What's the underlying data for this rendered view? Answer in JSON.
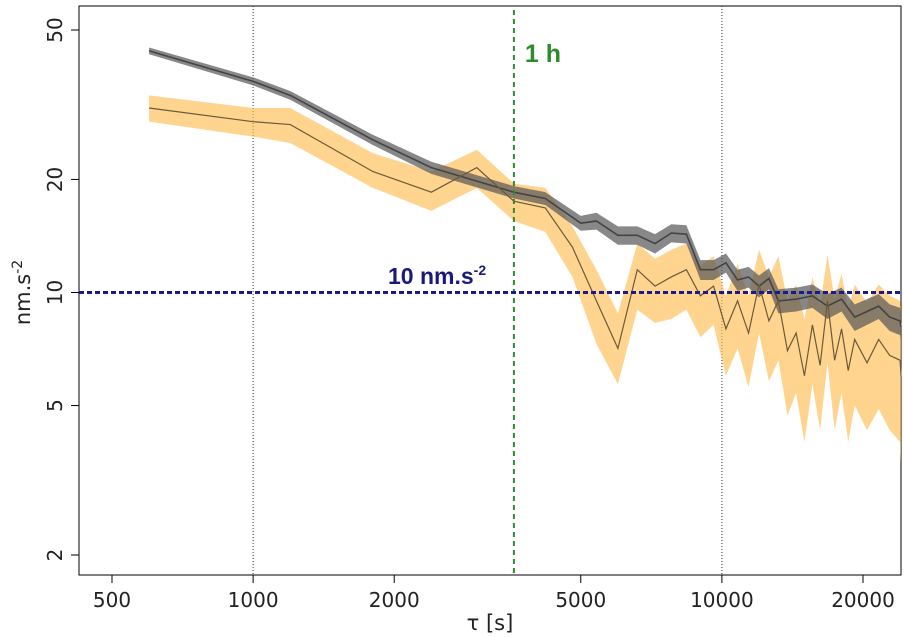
{
  "chart_data": {
    "type": "line",
    "title": "",
    "xlabel": "τ [s]",
    "ylabel_base": "nm.s",
    "ylabel_sup": "-2",
    "x_scale": "log",
    "y_scale": "log",
    "xlim": [
      390,
      25000
    ],
    "ylim": [
      1.8,
      60
    ],
    "x_ticks": [
      500,
      1000,
      2000,
      5000,
      10000,
      20000
    ],
    "x_tick_labels": [
      "500",
      "1000",
      "2000",
      "5000",
      "10000",
      "20000"
    ],
    "y_ticks": [
      2,
      5,
      10,
      20,
      50
    ],
    "y_tick_labels": [
      "2",
      "5",
      "10",
      "20",
      "50"
    ],
    "grid_vertical_dotted": [
      1000,
      10000
    ],
    "annotations": {
      "vline": {
        "x": 3600,
        "label": "1 h",
        "color": "#2e8b2e"
      },
      "hline": {
        "y": 10,
        "label_base": "10 nm.s",
        "label_sup": "-2",
        "color": "#1a1a8c"
      }
    },
    "colors": {
      "gray_band": "#555555",
      "gray_line": "#444444",
      "orange_band": "#fdb94a",
      "orange_line": "#6b5a3a"
    },
    "series": [
      {
        "color": "gray",
        "x": [
          600,
          1000,
          1200,
          1800,
          2400,
          3600,
          4200,
          5000,
          5400,
          6000,
          6600,
          7200,
          7800,
          8400,
          9000,
          9600,
          10200,
          10800,
          11400,
          12000,
          12600,
          13200,
          14400,
          15600,
          16800,
          18000,
          19200,
          20400,
          21600,
          22800,
          24000,
          25000
        ],
        "y": [
          44,
          36.5,
          33.5,
          25.5,
          21.5,
          18.5,
          17.8,
          15.3,
          15.5,
          14.2,
          14.2,
          13.5,
          14.4,
          14.3,
          11.5,
          11.5,
          12.0,
          10.8,
          11.0,
          10.4,
          10.9,
          9.5,
          9.6,
          9.8,
          9.2,
          9.6,
          8.6,
          8.9,
          9.2,
          8.6,
          8.4,
          8.1
        ],
        "band": [
          0.9,
          0.9,
          0.9,
          0.8,
          0.8,
          0.7,
          0.7,
          0.7,
          0.8,
          0.8,
          0.8,
          0.8,
          0.8,
          0.8,
          0.7,
          0.7,
          0.7,
          0.7,
          0.7,
          0.7,
          0.7,
          0.7,
          0.7,
          0.7,
          0.7,
          0.7,
          0.7,
          0.7,
          0.7,
          0.7,
          0.7,
          0.7
        ]
      },
      {
        "color": "orange",
        "x": [
          600,
          1000,
          1200,
          1800,
          2400,
          3000,
          3600,
          4200,
          4800,
          5400,
          6000,
          6600,
          7200,
          7800,
          8400,
          9000,
          9600,
          10200,
          10800,
          11400,
          12000,
          12600,
          13200,
          13800,
          14400,
          15000,
          15600,
          16200,
          16800,
          17400,
          18000,
          18600,
          19200,
          20400,
          21600,
          22800,
          24000,
          25000
        ],
        "y": [
          31,
          28.5,
          28,
          21,
          18.5,
          21.5,
          17.5,
          16.8,
          13.2,
          9.5,
          7.1,
          11.5,
          10.4,
          11.0,
          11.5,
          9.8,
          10.4,
          8.0,
          9.5,
          7.8,
          10.5,
          8.4,
          9.5,
          7.0,
          7.8,
          6.0,
          8.2,
          6.4,
          9.5,
          6.6,
          8.0,
          6.2,
          7.5,
          6.5,
          7.5,
          6.8,
          6.6,
          6.0
        ],
        "band_low": [
          28.5,
          26,
          25,
          19,
          16.5,
          19,
          15.5,
          14.5,
          11,
          7.3,
          5.7,
          9.0,
          8.3,
          8.5,
          9.0,
          7.6,
          8.2,
          6.0,
          7.1,
          5.6,
          7.8,
          5.8,
          6.6,
          4.7,
          5.4,
          4.0,
          5.7,
          4.3,
          6.5,
          4.3,
          5.4,
          4.0,
          5.0,
          4.3,
          4.9,
          4.3,
          4.0,
          3.5
        ],
        "band_high": [
          33.5,
          31,
          31,
          23.5,
          21,
          24,
          19.5,
          19,
          15,
          11.5,
          8.8,
          13.5,
          12.3,
          13.0,
          13.5,
          11.8,
          12.5,
          9.8,
          11.9,
          9.8,
          13.0,
          11.0,
          12.5,
          9.5,
          10.5,
          8.5,
          11.0,
          9.2,
          12.6,
          9.6,
          11.2,
          9.0,
          10.5,
          9.4,
          10.5,
          9.8,
          9.5,
          9.0
        ]
      }
    ]
  }
}
